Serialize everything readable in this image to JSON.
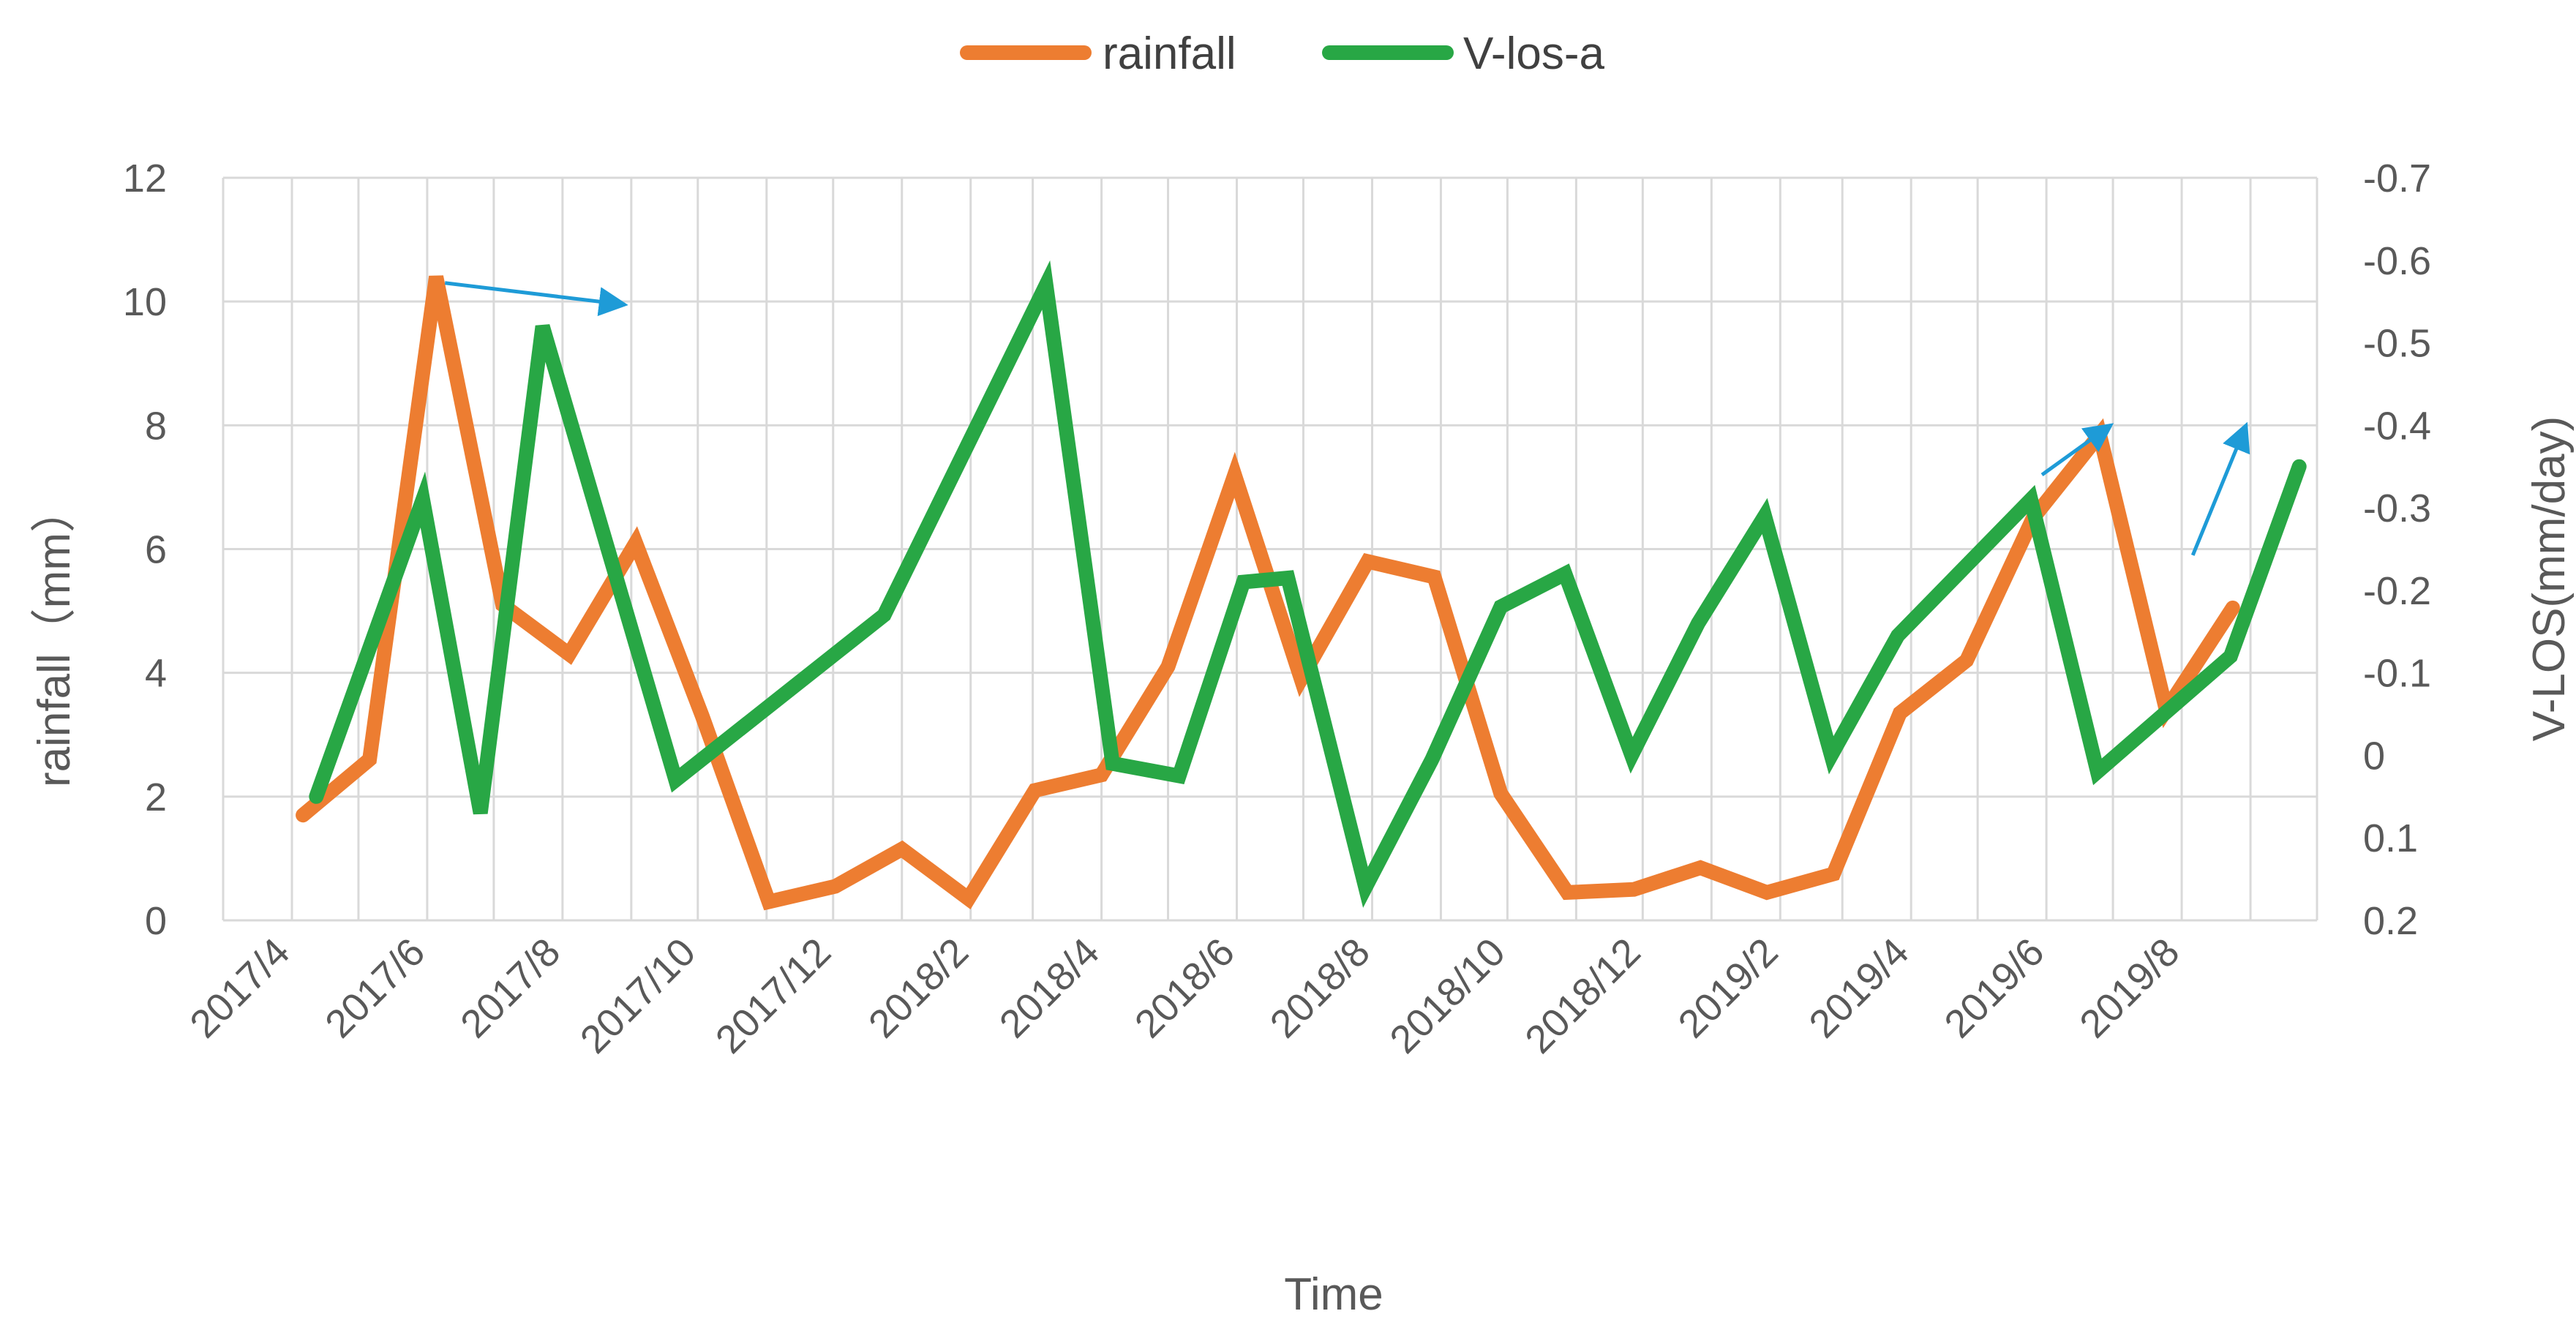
{
  "chart_data": {
    "type": "line",
    "title": "",
    "xlabel": "Time",
    "ylabel_left": "rainfall（mm）",
    "ylabel_right": "V-LOS(mm/day)",
    "ylim_left": [
      0,
      12
    ],
    "ylim_right": [
      0.2,
      -0.7
    ],
    "right_axis_inverted": true,
    "grid": true,
    "legend_position": "top-center",
    "x_tick_labels": [
      "2017/4",
      "2017/6",
      "2017/8",
      "2017/10",
      "2017/12",
      "2018/2",
      "2018/4",
      "2018/6",
      "2018/8",
      "2018/10",
      "2018/12",
      "2019/2",
      "2019/4",
      "2019/6",
      "2019/8"
    ],
    "series": [
      {
        "name": "rainfall",
        "axis": "left",
        "color": "#ED7D31",
        "x": [
          "2017-04-06",
          "2017-05-06",
          "2017-06-05",
          "2017-07-05",
          "2017-08-04",
          "2017-09-03",
          "2017-10-03",
          "2017-11-02",
          "2017-12-02",
          "2018-01-01",
          "2018-01-31",
          "2018-03-02",
          "2018-04-01",
          "2018-05-01",
          "2018-05-31",
          "2018-06-30",
          "2018-07-30",
          "2018-08-29",
          "2018-09-28",
          "2018-10-28",
          "2018-11-27",
          "2018-12-27",
          "2019-01-26",
          "2019-02-25",
          "2019-03-27",
          "2019-04-26",
          "2019-05-26",
          "2019-06-25",
          "2019-07-25",
          "2019-08-24"
        ],
        "y": [
          1.7,
          2.6,
          10.4,
          5.1,
          4.3,
          6.1,
          3.3,
          0.3,
          0.55,
          1.15,
          0.35,
          2.1,
          2.35,
          4.1,
          7.2,
          3.9,
          5.8,
          5.55,
          2.05,
          0.45,
          0.5,
          0.85,
          0.45,
          0.75,
          3.35,
          4.2,
          6.5,
          7.85,
          3.4,
          5.05
        ]
      },
      {
        "name": "V-los-a",
        "axis": "right",
        "color": "#28A745",
        "x": [
          "2017-04-12",
          "2017-05-30",
          "2017-06-25",
          "2017-07-23",
          "2017-09-21",
          "2017-12-24",
          "2018-03-07",
          "2018-04-06",
          "2018-05-06",
          "2018-06-04",
          "2018-06-24",
          "2018-07-29",
          "2018-08-28",
          "2018-09-28",
          "2018-10-27",
          "2018-11-26",
          "2018-12-26",
          "2019-01-25",
          "2019-02-24",
          "2019-03-26",
          "2019-05-25",
          "2019-06-24",
          "2019-08-23",
          "2019-09-23"
        ],
        "y": [
          0.05,
          -0.31,
          0.07,
          -0.52,
          0.03,
          -0.17,
          -0.57,
          0.01,
          0.025,
          -0.21,
          -0.215,
          0.16,
          0.005,
          -0.18,
          -0.22,
          0.0,
          -0.16,
          -0.29,
          0.0,
          -0.145,
          -0.31,
          0.02,
          -0.12,
          -0.35
        ]
      }
    ],
    "annotations": [
      {
        "type": "arrow",
        "color": "#1E9BD7",
        "from": {
          "x": "2017-06-09",
          "y_left": 10.3
        },
        "to": {
          "x": "2017-08-29",
          "y_left": 9.95
        }
      },
      {
        "type": "arrow",
        "color": "#1E9BD7",
        "from": {
          "x": "2019-05-30",
          "y_left": 7.2
        },
        "to": {
          "x": "2019-06-30",
          "y_left": 8.0
        }
      },
      {
        "type": "arrow",
        "color": "#1E9BD7",
        "from": {
          "x": "2019-08-06",
          "y_left": 5.9
        },
        "to": {
          "x": "2019-08-30",
          "y_left": 8.0
        }
      }
    ]
  }
}
